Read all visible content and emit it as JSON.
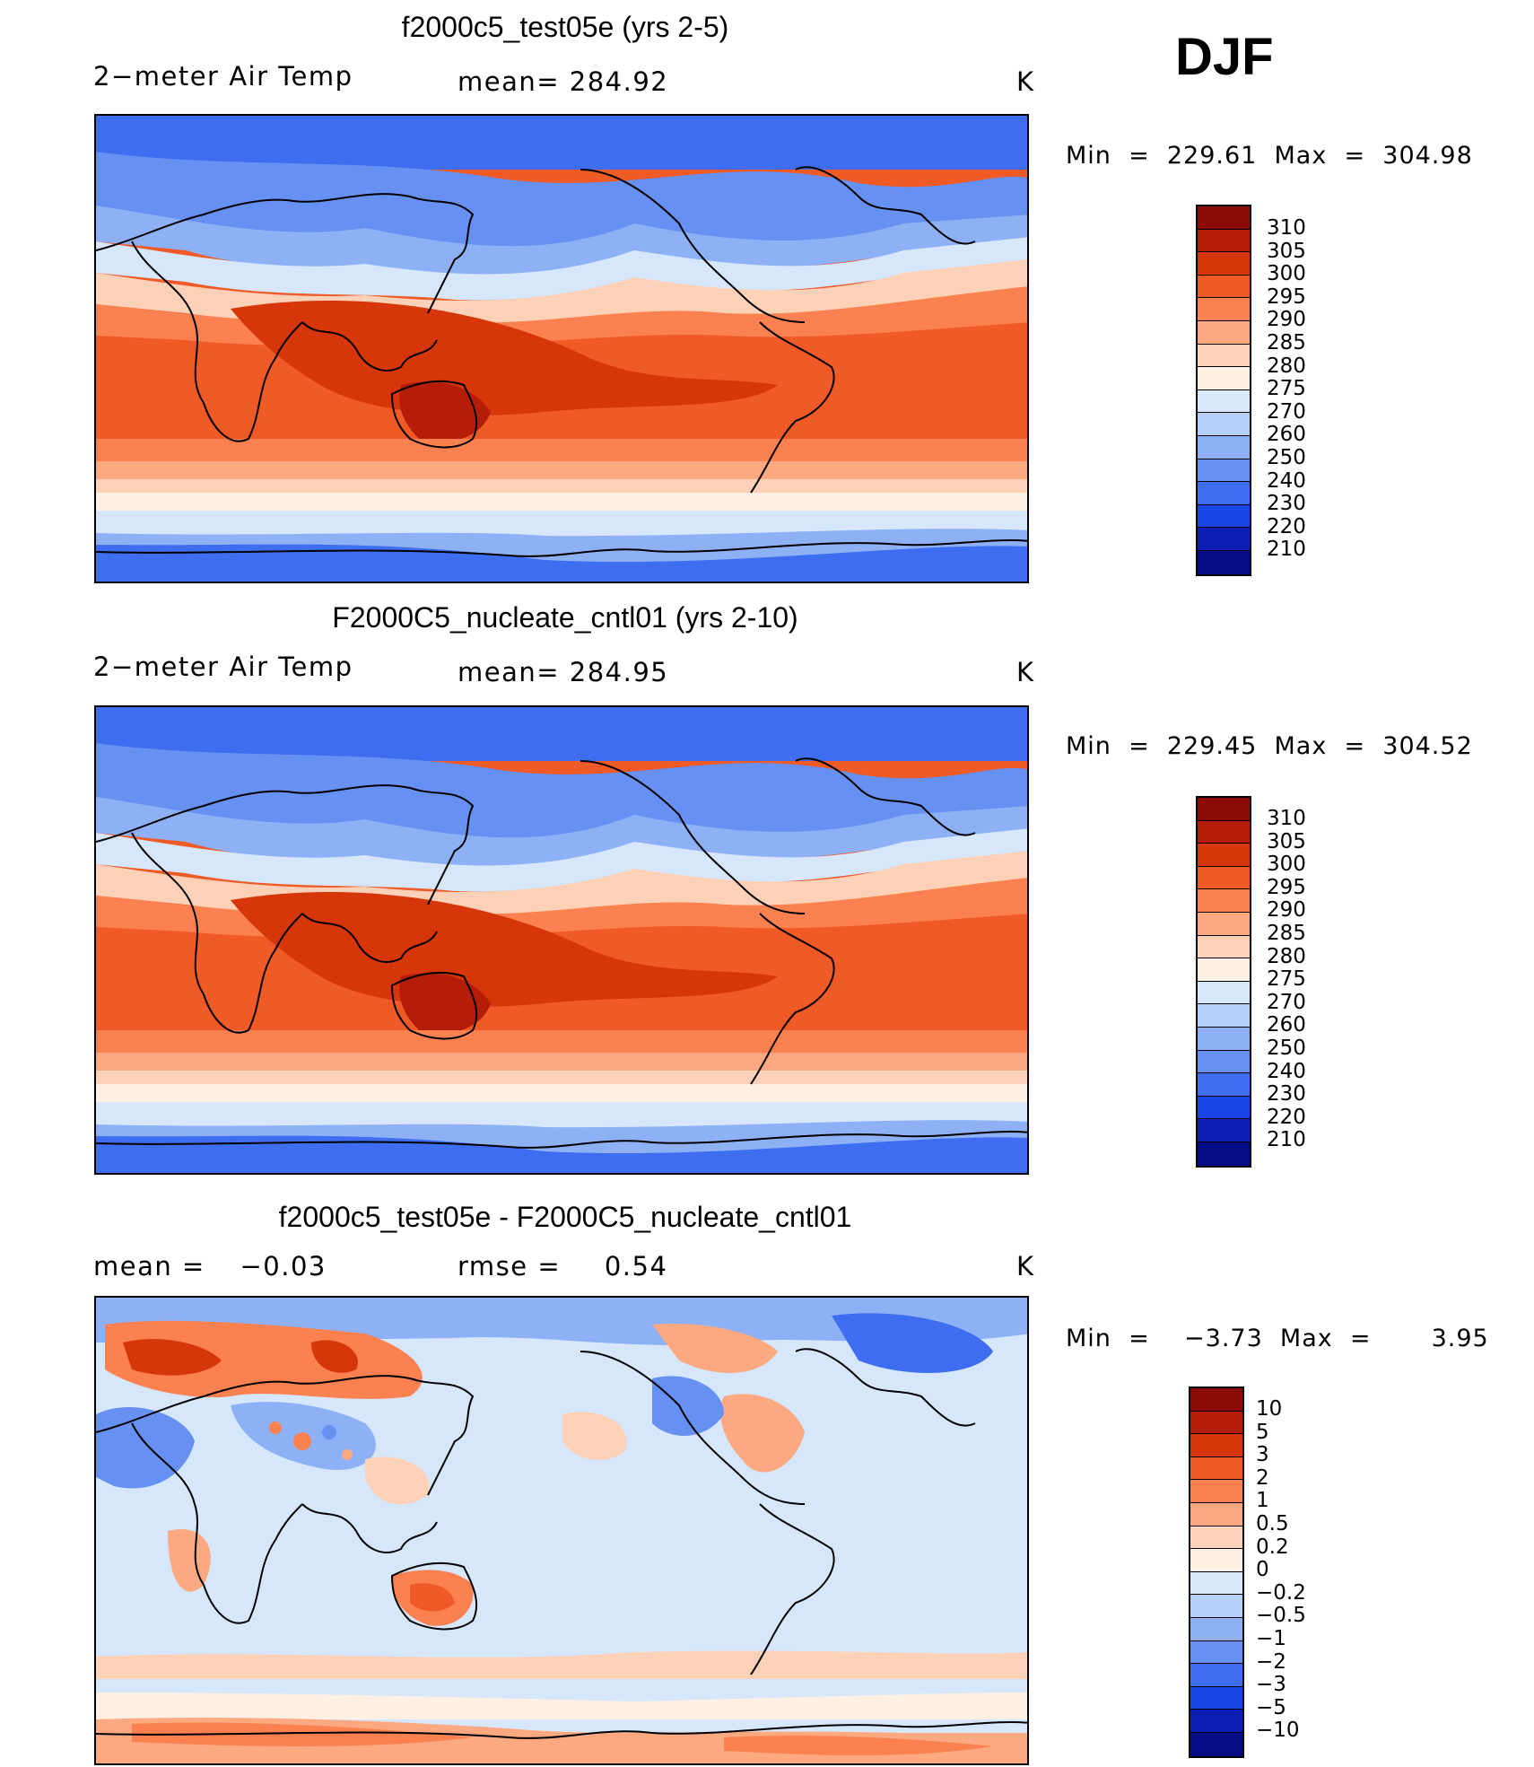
{
  "season": "DJF",
  "units": "K",
  "panels": [
    {
      "title": "f2000c5_test05e (yrs 2-5)",
      "variable": "2−meter Air Temp",
      "stat": "mean=",
      "stat_value": "284.92",
      "units": "K",
      "minmax": "Min  =  229.61  Max  =  304.98",
      "colorbar_labels": [
        "310",
        "305",
        "300",
        "295",
        "290",
        "285",
        "280",
        "275",
        "270",
        "260",
        "250",
        "240",
        "230",
        "220",
        "210"
      ],
      "colorbar_colors": [
        "#8c0a07",
        "#b51d08",
        "#d63609",
        "#f05a26",
        "#fb8150",
        "#fca982",
        "#fdd1b8",
        "#fff0e3",
        "#d6e7fb",
        "#b7d0fa",
        "#8eb1f6",
        "#6690f2",
        "#3f6def",
        "#1a46e6",
        "#0b1fb7",
        "#050d86"
      ],
      "range": [
        210,
        310
      ]
    },
    {
      "title": "F2000C5_nucleate_cntl01 (yrs 2-10)",
      "variable": "2−meter Air Temp",
      "stat": "mean=",
      "stat_value": "284.95",
      "units": "K",
      "minmax": "Min  =  229.45  Max  =  304.52",
      "colorbar_labels": [
        "310",
        "305",
        "300",
        "295",
        "290",
        "285",
        "280",
        "275",
        "270",
        "260",
        "250",
        "240",
        "230",
        "220",
        "210"
      ],
      "colorbar_colors": [
        "#8c0a07",
        "#b51d08",
        "#d63609",
        "#f05a26",
        "#fb8150",
        "#fca982",
        "#fdd1b8",
        "#fff0e3",
        "#d6e7fb",
        "#b7d0fa",
        "#8eb1f6",
        "#6690f2",
        "#3f6def",
        "#1a46e6",
        "#0b1fb7",
        "#050d86"
      ],
      "range": [
        210,
        310
      ]
    },
    {
      "title": "f2000c5_test05e - F2000C5_nucleate_cntl01",
      "variable": "mean  =",
      "variable_value": "−0.03",
      "stat": "rmse  =",
      "stat_value": "0.54",
      "units": "K",
      "minmax": "Min  =    −3.73  Max  =       3.95",
      "colorbar_labels": [
        "10",
        "5",
        "3",
        "2",
        "1",
        "0.5",
        "0.2",
        "0",
        "−0.2",
        "−0.5",
        "−1",
        "−2",
        "−3",
        "−5",
        "−10"
      ],
      "colorbar_colors": [
        "#8c0a07",
        "#b51d08",
        "#d63609",
        "#f05a26",
        "#fb8150",
        "#fca982",
        "#fdd1b8",
        "#fff0e3",
        "#d6e7fb",
        "#b7d0fa",
        "#8eb1f6",
        "#6690f2",
        "#3f6def",
        "#1a46e6",
        "#0b1fb7",
        "#050d86"
      ],
      "range": [
        -10,
        10
      ]
    }
  ]
}
